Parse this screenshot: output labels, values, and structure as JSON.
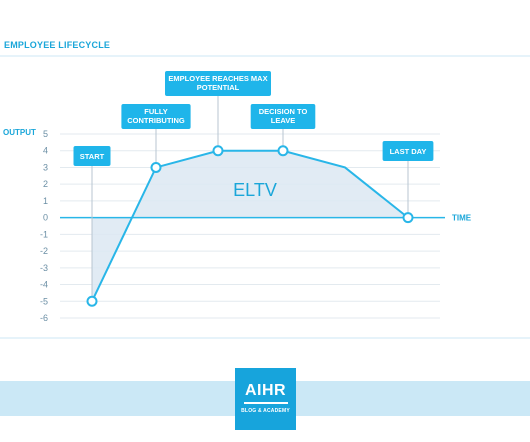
{
  "header": {
    "title": "EMPLOYEE LIFECYCLE"
  },
  "logo": {
    "brand": "AIHR",
    "tagline": "BLOG & ACADEMY"
  },
  "colors": {
    "accent": "#1aa6d9",
    "line": "#29b6e8",
    "fill": "#dce8f2",
    "grid": "#e3eaef",
    "callout": "#1fb5ea",
    "footer_band": "#cbe8f6"
  },
  "chart_data": {
    "type": "area",
    "title": "EMPLOYEE LIFECYCLE",
    "xlabel": "TIME",
    "ylabel": "OUTPUT",
    "ylim": [
      -6,
      5
    ],
    "yticks": [
      5,
      4,
      3,
      2,
      1,
      0,
      -1,
      -2,
      -3,
      -4,
      -5,
      -6
    ],
    "grid": true,
    "region_label": "ELTV",
    "series": [
      {
        "points": [
          {
            "x": 0,
            "y": -5
          },
          {
            "x": 1,
            "y": 3
          },
          {
            "x": 2,
            "y": 4
          },
          {
            "x": 3,
            "y": 4
          },
          {
            "x": 4,
            "y": 3
          },
          {
            "x": 5,
            "y": 0
          }
        ]
      }
    ],
    "annotations": [
      {
        "point": 0,
        "lines": [
          "START"
        ]
      },
      {
        "point": 1,
        "lines": [
          "FULLY",
          "CONTRIBUTING"
        ]
      },
      {
        "point": 2,
        "lines": [
          "EMPLOYEE REACHES MAX",
          "POTENTIAL"
        ]
      },
      {
        "point": 3,
        "lines": [
          "DECISION TO",
          "LEAVE"
        ]
      },
      {
        "point": 5,
        "lines": [
          "LAST DAY"
        ]
      }
    ]
  }
}
